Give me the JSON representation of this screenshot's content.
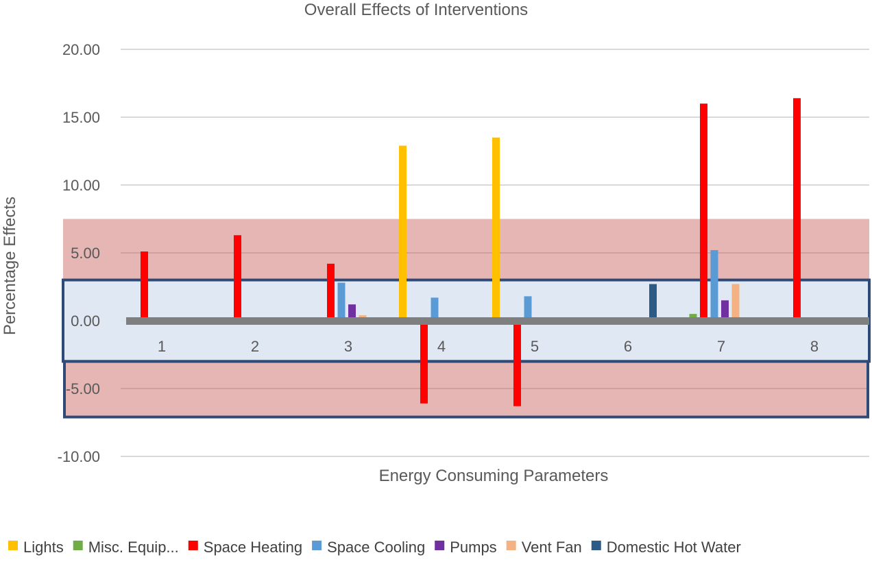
{
  "chart_data": {
    "type": "bar",
    "title": "Overall Effects of Interventions",
    "xlabel": "Energy Consuming Parameters",
    "ylabel": "Percentage Effects",
    "ylim": [
      -10,
      20
    ],
    "yticks": [
      "20.00",
      "15.00",
      "10.00",
      "5.00",
      "0.00",
      "-5.00",
      "-10.00"
    ],
    "categories": [
      "1",
      "2",
      "3",
      "4",
      "5",
      "6",
      "7",
      "8"
    ],
    "grid": true,
    "legend_position": "bottom",
    "series": [
      {
        "name": "Lights",
        "color": "#FFC000",
        "values": [
          0,
          0,
          0,
          12.9,
          13.5,
          0,
          0,
          0
        ]
      },
      {
        "name": "Misc. Equip...",
        "color": "#70AD47",
        "values": [
          0,
          0,
          0,
          0,
          0,
          0,
          0.5,
          0
        ]
      },
      {
        "name": "Space Heating",
        "color": "#FF0000",
        "values": [
          5.1,
          6.3,
          4.2,
          -6.1,
          -6.3,
          0,
          16.0,
          16.4
        ]
      },
      {
        "name": "Space Cooling",
        "color": "#5B9BD5",
        "values": [
          0,
          0,
          2.8,
          1.7,
          1.8,
          0,
          5.2,
          0
        ]
      },
      {
        "name": "Pumps",
        "color": "#7030A0",
        "values": [
          0,
          0,
          1.2,
          0,
          0,
          0,
          1.5,
          0
        ]
      },
      {
        "name": "Vent Fan",
        "color": "#F4B183",
        "values": [
          0,
          0,
          0.4,
          0,
          0,
          0,
          2.7,
          0
        ]
      },
      {
        "name": "Domestic Hot Water",
        "color": "#2E5A88",
        "values": [
          0,
          0,
          0,
          0,
          0,
          2.7,
          0,
          0
        ]
      }
    ],
    "overlays": [
      {
        "kind": "band",
        "from": 3,
        "to": 7.5,
        "color": "#C0504D"
      },
      {
        "kind": "band",
        "from": -7.1,
        "to": -3,
        "color": "#C0504D"
      },
      {
        "kind": "band",
        "from": -3,
        "to": 3,
        "color": "#DCE6F2",
        "outline": "#2E4A78"
      }
    ]
  }
}
